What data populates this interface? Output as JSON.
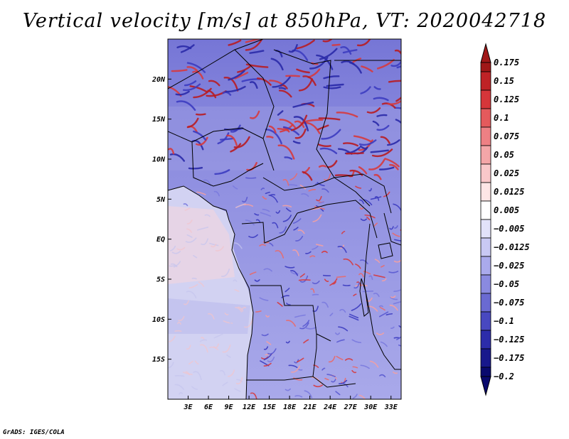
{
  "title": "Vertical velocity [m/s] at 850hPa, VT: 2020042718",
  "footer": "GrADS: IGES/COLA",
  "chart_data": {
    "type": "heatmap",
    "title": "Vertical velocity [m/s] at 850hPa, VT: 2020042718",
    "variable": "vertical velocity",
    "units": "m/s",
    "level": "850hPa",
    "valid_time": "2020042718",
    "x_ticks": [
      "3E",
      "6E",
      "9E",
      "12E",
      "15E",
      "18E",
      "21E",
      "24E",
      "27E",
      "30E",
      "33E"
    ],
    "x_tick_values": [
      3,
      6,
      9,
      12,
      15,
      18,
      21,
      24,
      27,
      30,
      33
    ],
    "y_ticks": [
      "20N",
      "15N",
      "10N",
      "5N",
      "EQ",
      "5S",
      "10S",
      "15S"
    ],
    "y_tick_values": [
      20,
      15,
      10,
      5,
      0,
      -5,
      -10,
      -15
    ],
    "xlim": [
      0,
      34.5
    ],
    "ylim": [
      -20,
      25
    ],
    "colorbar": {
      "labels": [
        "0.175",
        "0.15",
        "0.125",
        "0.1",
        "0.075",
        "0.05",
        "0.025",
        "0.0125",
        "0.005",
        "−0.005",
        "−0.0125",
        "−0.025",
        "−0.05",
        "−0.075",
        "−0.1",
        "−0.125",
        "−0.175",
        "−0.2"
      ],
      "colors": [
        "#a01818",
        "#bf2226",
        "#d6363a",
        "#e45a5c",
        "#ee8084",
        "#f4a6a8",
        "#f9c8ca",
        "#fde6e6",
        "#ffffff",
        "#e2e2fa",
        "#c9c9f4",
        "#aaaaec",
        "#8a8ae0",
        "#6a6ad2",
        "#4848c0",
        "#2c2caa",
        "#18188c",
        "#0a0a6e"
      ]
    }
  }
}
